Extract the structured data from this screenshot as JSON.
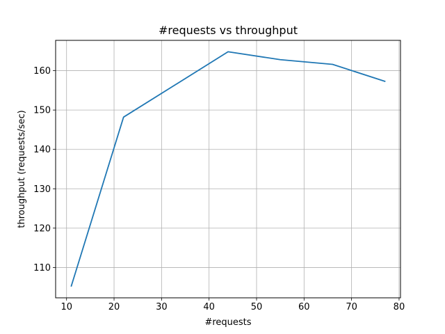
{
  "chart_data": {
    "type": "line",
    "title": "#requests vs throughput",
    "xlabel": "#requests",
    "ylabel": "throughput (requests/sec)",
    "xlim": [
      7.7,
      80.3
    ],
    "ylim": [
      102.3,
      167.7
    ],
    "xticks": [
      10,
      20,
      30,
      40,
      50,
      60,
      70,
      80
    ],
    "yticks": [
      110,
      120,
      130,
      140,
      150,
      160
    ],
    "grid": true,
    "series": [
      {
        "color": "#1f77b4",
        "x": [
          11,
          22,
          33,
          44,
          55,
          66,
          77
        ],
        "y": [
          105.3,
          148.2,
          156.5,
          164.8,
          162.8,
          161.6,
          157.3
        ]
      }
    ]
  }
}
